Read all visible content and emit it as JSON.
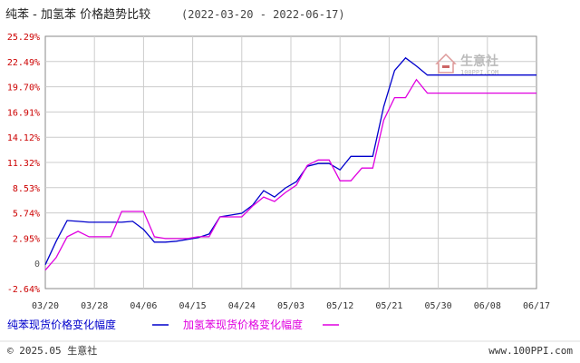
{
  "title": {
    "main": "纯苯 - 加氢苯 价格趋势比较",
    "range": "(2022-03-20 - 2022-06-17)"
  },
  "watermark": {
    "brand": "生意社",
    "site": "100PPI.COM"
  },
  "footer": {
    "copyright": "© 2025.05 生意社",
    "website": "www.100PPI.com"
  },
  "colors": {
    "series1": "#0000cc",
    "series2": "#e000e0",
    "tick_label": "#cc0000",
    "grid": "#cccccc"
  },
  "chart_data": {
    "type": "line",
    "x": [
      "03/20",
      "03/22",
      "03/24",
      "03/26",
      "03/28",
      "03/30",
      "04/01",
      "04/03",
      "04/05",
      "04/07",
      "04/09",
      "04/11",
      "04/13",
      "04/15",
      "04/17",
      "04/19",
      "04/21",
      "04/23",
      "04/25",
      "04/27",
      "04/29",
      "05/01",
      "05/03",
      "05/05",
      "05/07",
      "05/09",
      "05/11",
      "05/13",
      "05/15",
      "05/17",
      "05/19",
      "05/21",
      "05/23",
      "05/25",
      "05/27",
      "05/29",
      "05/31",
      "06/02",
      "06/04",
      "06/06",
      "06/08",
      "06/10",
      "06/12",
      "06/14",
      "06/16",
      "06/17"
    ],
    "x_ticks": [
      "03/20",
      "03/28",
      "04/06",
      "04/15",
      "04/24",
      "05/03",
      "05/12",
      "05/21",
      "05/30",
      "06/08",
      "06/17"
    ],
    "y_ticks": [
      "25.29%",
      "22.49%",
      "19.70%",
      "16.91%",
      "14.12%",
      "11.32%",
      "8.53%",
      "5.74%",
      "2.95%",
      "0",
      "-2.64%"
    ],
    "ylim": [
      -2.64,
      25.29
    ],
    "series": [
      {
        "name": "纯苯现货价格变化幅度",
        "values": [
          0,
          2.6,
          4.9,
          4.8,
          4.7,
          4.7,
          4.7,
          4.7,
          4.8,
          3.9,
          2.5,
          2.5,
          2.6,
          2.8,
          3.0,
          3.4,
          5.3,
          5.5,
          5.7,
          6.6,
          8.2,
          7.5,
          8.5,
          9.2,
          10.9,
          11.2,
          11.2,
          10.5,
          12.0,
          12.0,
          12.0,
          17.5,
          21.5,
          22.9,
          22.0,
          21.0,
          21.0,
          21.0,
          21.0,
          21.0,
          21.0,
          21.0,
          21.0,
          21.0,
          21.0,
          21.0
        ]
      },
      {
        "name": "加氢苯现货价格变化幅度",
        "values": [
          -0.6,
          0.8,
          3.1,
          3.7,
          3.1,
          3.1,
          3.1,
          5.9,
          5.9,
          5.9,
          3.1,
          2.9,
          2.9,
          2.9,
          3.1,
          3.1,
          5.3,
          5.3,
          5.3,
          6.5,
          7.5,
          7.0,
          8.0,
          8.8,
          11.0,
          11.6,
          11.6,
          9.3,
          9.3,
          10.7,
          10.7,
          16.0,
          18.5,
          18.5,
          20.5,
          19.0,
          19.0,
          19.0,
          19.0,
          19.0,
          19.0,
          19.0,
          19.0,
          19.0,
          19.0,
          19.0
        ]
      }
    ],
    "grid": true,
    "legend_position": "bottom-left"
  }
}
